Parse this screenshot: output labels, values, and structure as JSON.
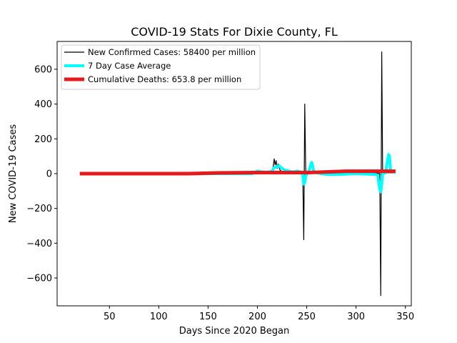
{
  "chart_data": {
    "type": "line",
    "title": "COVID-19 Stats For Dixie County, FL",
    "xlabel": "Days Since 2020 Began",
    "ylabel": "New COVID-19 Cases",
    "xlim": [
      -3,
      356
    ],
    "ylim": [
      -760,
      760
    ],
    "xticks": [
      50,
      100,
      150,
      200,
      250,
      300,
      350
    ],
    "yticks": [
      -600,
      -400,
      -200,
      0,
      200,
      400,
      600
    ],
    "ytick_labels": [
      "−600",
      "−400",
      "−200",
      "0",
      "200",
      "400",
      "600"
    ],
    "legend_position": "top-left",
    "grid": false,
    "series": [
      {
        "name": "New Confirmed Cases: 58400 per million",
        "color": "#000000",
        "style": "thin",
        "points": [
          [
            20,
            0
          ],
          [
            150,
            0
          ],
          [
            200,
            1
          ],
          [
            214,
            1
          ],
          [
            215,
            3
          ],
          [
            216,
            40
          ],
          [
            217,
            85
          ],
          [
            218,
            50
          ],
          [
            219,
            75
          ],
          [
            220,
            30
          ],
          [
            221,
            55
          ],
          [
            222,
            35
          ],
          [
            223,
            20
          ],
          [
            225,
            10
          ],
          [
            230,
            8
          ],
          [
            240,
            5
          ],
          [
            246,
            3
          ],
          [
            247,
            -380
          ],
          [
            248,
            400
          ],
          [
            249,
            2
          ],
          [
            252,
            5
          ],
          [
            260,
            5
          ],
          [
            270,
            0
          ],
          [
            300,
            2
          ],
          [
            320,
            2
          ],
          [
            324,
            0
          ],
          [
            325,
            -700
          ],
          [
            326,
            700
          ],
          [
            327,
            0
          ],
          [
            332,
            5
          ],
          [
            340,
            5
          ]
        ]
      },
      {
        "name": "7 Day Case Average",
        "color": "#00ffff",
        "style": "medium",
        "points": [
          [
            20,
            0
          ],
          [
            150,
            0
          ],
          [
            195,
            0
          ],
          [
            200,
            15
          ],
          [
            205,
            10
          ],
          [
            210,
            8
          ],
          [
            215,
            15
          ],
          [
            217,
            35
          ],
          [
            220,
            40
          ],
          [
            222,
            45
          ],
          [
            225,
            30
          ],
          [
            228,
            20
          ],
          [
            232,
            15
          ],
          [
            236,
            10
          ],
          [
            240,
            15
          ],
          [
            244,
            10
          ],
          [
            246,
            -5
          ],
          [
            247,
            -60
          ],
          [
            248,
            -50
          ],
          [
            249,
            -10
          ],
          [
            252,
            10
          ],
          [
            254,
            50
          ],
          [
            255,
            65
          ],
          [
            256,
            45
          ],
          [
            257,
            15
          ],
          [
            260,
            5
          ],
          [
            265,
            0
          ],
          [
            270,
            -5
          ],
          [
            280,
            -5
          ],
          [
            300,
            0
          ],
          [
            320,
            -5
          ],
          [
            322,
            -10
          ],
          [
            324,
            -90
          ],
          [
            325,
            -105
          ],
          [
            326,
            -60
          ],
          [
            327,
            0
          ],
          [
            330,
            5
          ],
          [
            332,
            80
          ],
          [
            333,
            110
          ],
          [
            334,
            100
          ],
          [
            335,
            20
          ],
          [
            340,
            5
          ]
        ]
      },
      {
        "name": "Cumulative Deaths: 653.8 per million",
        "color": "#e41a1c",
        "style": "thick",
        "points": [
          [
            20,
            0
          ],
          [
            130,
            0
          ],
          [
            160,
            4
          ],
          [
            200,
            6
          ],
          [
            250,
            6
          ],
          [
            260,
            8
          ],
          [
            280,
            12
          ],
          [
            290,
            14
          ],
          [
            330,
            14
          ],
          [
            340,
            14
          ]
        ]
      }
    ]
  }
}
